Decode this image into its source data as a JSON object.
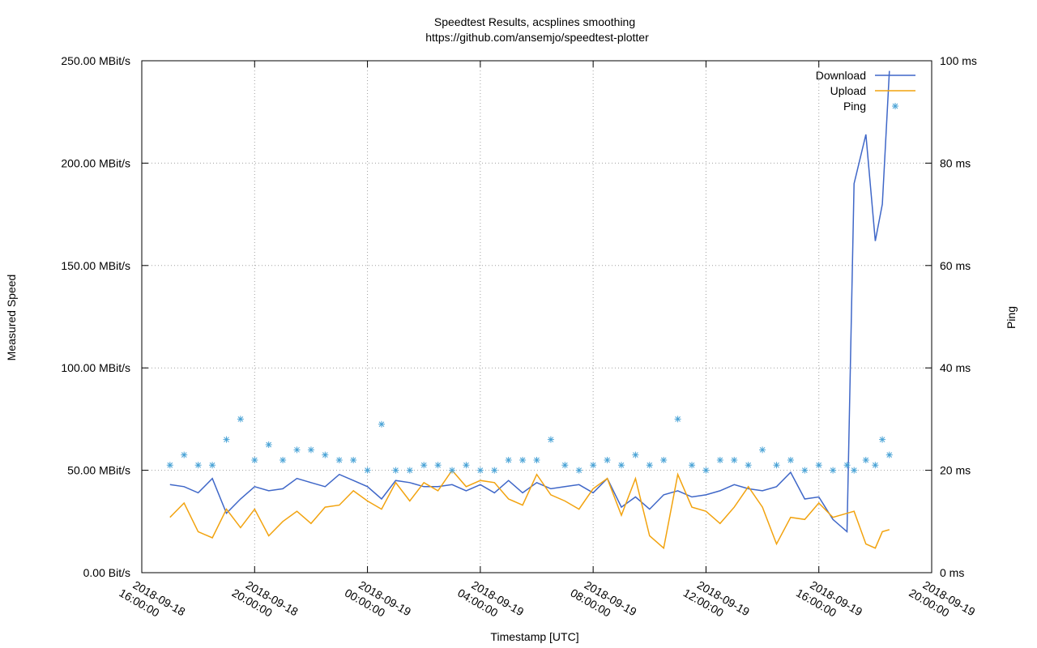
{
  "chart_data": {
    "type": "line",
    "title": "Speedtest Results, acsplines smoothing",
    "subtitle": "https://github.com/ansemjo/speedtest-plotter",
    "xlabel": "Timestamp [UTC]",
    "ylabel": "Measured Speed",
    "y2label": "Ping",
    "x": [
      "2018-09-18 17:00:00",
      "2018-09-18 17:30:00",
      "2018-09-18 18:00:00",
      "2018-09-18 18:30:00",
      "2018-09-18 19:00:00",
      "2018-09-18 19:30:00",
      "2018-09-18 20:00:00",
      "2018-09-18 20:30:00",
      "2018-09-18 21:00:00",
      "2018-09-18 21:30:00",
      "2018-09-18 22:00:00",
      "2018-09-18 22:30:00",
      "2018-09-18 23:00:00",
      "2018-09-18 23:30:00",
      "2018-09-19 00:00:00",
      "2018-09-19 00:30:00",
      "2018-09-19 01:00:00",
      "2018-09-19 01:30:00",
      "2018-09-19 02:00:00",
      "2018-09-19 02:30:00",
      "2018-09-19 03:00:00",
      "2018-09-19 03:30:00",
      "2018-09-19 04:00:00",
      "2018-09-19 04:30:00",
      "2018-09-19 05:00:00",
      "2018-09-19 05:30:00",
      "2018-09-19 06:00:00",
      "2018-09-19 06:30:00",
      "2018-09-19 07:00:00",
      "2018-09-19 07:30:00",
      "2018-09-19 08:00:00",
      "2018-09-19 08:30:00",
      "2018-09-19 09:00:00",
      "2018-09-19 09:30:00",
      "2018-09-19 10:00:00",
      "2018-09-19 10:30:00",
      "2018-09-19 11:00:00",
      "2018-09-19 11:30:00",
      "2018-09-19 12:00:00",
      "2018-09-19 12:30:00",
      "2018-09-19 13:00:00",
      "2018-09-19 13:30:00",
      "2018-09-19 14:00:00",
      "2018-09-19 14:30:00",
      "2018-09-19 15:00:00",
      "2018-09-19 15:30:00",
      "2018-09-19 16:00:00",
      "2018-09-19 16:30:00",
      "2018-09-19 17:00:00",
      "2018-09-19 17:15:00",
      "2018-09-19 17:40:00",
      "2018-09-19 18:00:00",
      "2018-09-19 18:15:00",
      "2018-09-19 18:30:00"
    ],
    "series": [
      {
        "name": "Download",
        "color": "#3f67c8",
        "axis": "y",
        "style": "line",
        "values": [
          43,
          42,
          39,
          46,
          29,
          36,
          42,
          40,
          41,
          46,
          44,
          42,
          48,
          45,
          42,
          36,
          45,
          44,
          42,
          42,
          43,
          40,
          43,
          39,
          45,
          39,
          44,
          41,
          42,
          43,
          39,
          46,
          32,
          37,
          31,
          38,
          40,
          37,
          38,
          40,
          43,
          41,
          40,
          42,
          49,
          36,
          37,
          26,
          20,
          190,
          214,
          162,
          180,
          245
        ]
      },
      {
        "name": "Upload",
        "color": "#f2a30f",
        "axis": "y",
        "style": "line",
        "values": [
          27,
          34,
          20,
          17,
          31,
          22,
          31,
          18,
          25,
          30,
          24,
          32,
          33,
          40,
          35,
          31,
          44,
          35,
          44,
          40,
          50,
          42,
          45,
          44,
          36,
          33,
          48,
          38,
          35,
          31,
          41,
          46,
          28,
          46,
          18,
          12,
          48,
          32,
          30,
          24,
          32,
          42,
          32,
          14,
          27,
          26,
          34,
          27,
          29,
          30,
          14,
          12,
          20,
          21
        ]
      },
      {
        "name": "Ping",
        "color": "#4aa3d6",
        "axis": "y2",
        "style": "points",
        "values": [
          21,
          23,
          21,
          21,
          26,
          30,
          22,
          25,
          22,
          24,
          24,
          23,
          22,
          22,
          20,
          29,
          20,
          20,
          21,
          21,
          20,
          21,
          20,
          20,
          22,
          22,
          22,
          26,
          21,
          20,
          21,
          22,
          21,
          23,
          21,
          22,
          30,
          21,
          20,
          22,
          22,
          21,
          24,
          21,
          22,
          20,
          21,
          20,
          21,
          20,
          22,
          21,
          26,
          23
        ]
      }
    ],
    "xlim": [
      "2018-09-18 16:00:00",
      "2018-09-19 20:00:00"
    ],
    "xticks": [
      "2018-09-18 16:00:00",
      "2018-09-18 20:00:00",
      "2018-09-19 00:00:00",
      "2018-09-19 04:00:00",
      "2018-09-19 08:00:00",
      "2018-09-19 12:00:00",
      "2018-09-19 16:00:00",
      "2018-09-19 20:00:00"
    ],
    "ylim": [
      0,
      250
    ],
    "yticks": [
      {
        "value": 0,
        "label": "0.00  Bit/s"
      },
      {
        "value": 50,
        "label": "50.00 MBit/s"
      },
      {
        "value": 100,
        "label": "100.00 MBit/s"
      },
      {
        "value": 150,
        "label": "150.00 MBit/s"
      },
      {
        "value": 200,
        "label": "200.00 MBit/s"
      },
      {
        "value": 250,
        "label": "250.00 MBit/s"
      }
    ],
    "y2lim": [
      0,
      100
    ],
    "y2ticks": [
      {
        "value": 0,
        "label": "0 ms"
      },
      {
        "value": 20,
        "label": "20 ms"
      },
      {
        "value": 40,
        "label": "40 ms"
      },
      {
        "value": 60,
        "label": "60 ms"
      },
      {
        "value": 80,
        "label": "80 ms"
      },
      {
        "value": 100,
        "label": "100 ms"
      }
    ],
    "grid": true,
    "legend": "top-right"
  }
}
